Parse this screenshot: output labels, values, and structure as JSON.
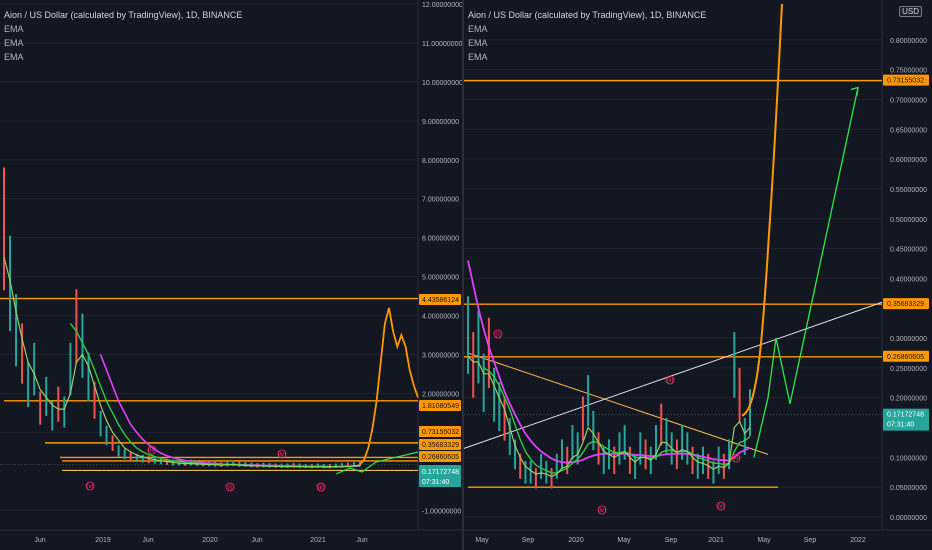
{
  "colors": {
    "background": "#131722",
    "orange": "#ff9800",
    "magenta": "#e040fb",
    "green_ema": "#4caf50",
    "bright_green": "#2ee84b",
    "white_line": "#e0e3eb",
    "price_tag": "#26a69a",
    "up_candle": "#26a69a",
    "down_candle": "#ef5350",
    "note_red": "#ff2e63"
  },
  "left_pane": {
    "legend": {
      "title": "Aion / US Dollar (calculated by TradingView), 1D, BINANCE",
      "indicators": [
        "EMA",
        "EMA",
        "EMA"
      ]
    },
    "price_tag": {
      "value": "0.17172748",
      "countdown": "07:31:40"
    },
    "level_tags": [
      "4.43586124",
      "1.81080549",
      "0.73155032",
      "0.35683329",
      "0.26860605"
    ],
    "notes": [
      "(iii)",
      "(iv)",
      "(v)",
      "(i)",
      "(ii)"
    ]
  },
  "right_pane": {
    "legend": {
      "title": "Aion / US Dollar (calculated by TradingView), 1D, BINANCE",
      "indicators": [
        "EMA",
        "EMA",
        "EMA"
      ]
    },
    "currency_badge": "USD",
    "price_tag": {
      "value": "0.17172748",
      "countdown": "07:31:40"
    },
    "level_tags": [
      "0.73155032",
      "0.35683329",
      "0.26860605"
    ],
    "notes": [
      "(i)",
      "(ii)",
      "(iv)",
      "(v)",
      "(iii)"
    ]
  },
  "chart_data": [
    {
      "type": "line",
      "title": "Aion / US Dollar (calculated by TradingView), 1D, BINANCE",
      "scale": "linear",
      "ylim": [
        -1.3,
        12.0
      ],
      "y_ticks": [
        "12.00000000",
        "11.00000000",
        "10.00000000",
        "9.00000000",
        "8.00000000",
        "7.00000000",
        "6.00000000",
        "5.00000000",
        "4.00000000",
        "3.00000000",
        "2.00000000",
        "1.00000000",
        "-1.00000000"
      ],
      "y_tick_values": [
        12,
        11,
        10,
        9,
        8,
        7,
        6,
        5,
        4,
        3,
        2,
        1,
        -1
      ],
      "x_ticks": [
        "Jun",
        "2019",
        "Jun",
        "2020",
        "Jun",
        "2021",
        "Jun"
      ],
      "horizontal_levels": [
        4.43586124,
        1.81080549,
        0.73155032,
        0.35683329,
        0.26860605
      ],
      "last_price": 0.17172748,
      "series": [
        {
          "role": "price",
          "values": [
            6.2,
            4.8,
            3.6,
            3.0,
            2.2,
            2.6,
            1.6,
            1.9,
            1.4,
            1.7,
            1.5,
            2.6,
            3.7,
            3.2,
            2.4,
            1.8,
            1.2,
            0.9,
            0.7,
            0.5,
            0.42,
            0.35,
            0.32,
            0.3,
            0.28,
            0.26,
            0.24,
            0.22,
            0.2,
            0.2,
            0.19,
            0.2,
            0.18,
            0.17,
            0.17,
            0.16,
            0.15,
            0.17,
            0.18,
            0.16,
            0.15,
            0.14,
            0.13,
            0.14,
            0.13,
            0.12,
            0.12,
            0.12,
            0.13,
            0.12,
            0.11,
            0.11,
            0.12,
            0.11,
            0.11,
            0.12,
            0.13,
            0.14,
            0.15,
            0.17
          ]
        },
        {
          "role": "ema_fast",
          "values": [
            5.5,
            4.9,
            4.1,
            3.4,
            2.8,
            2.5,
            2.1,
            1.9,
            1.7,
            1.6,
            1.6,
            2.0,
            2.8,
            3.0,
            2.7,
            2.2,
            1.7,
            1.3,
            1.0,
            0.8,
            0.6,
            0.5,
            0.42,
            0.37,
            0.33,
            0.3,
            0.27,
            0.25,
            0.23,
            0.21,
            0.2,
            0.2,
            0.19,
            0.18,
            0.17,
            0.17,
            0.16,
            0.17,
            0.17,
            0.16,
            0.15,
            0.14,
            0.14,
            0.14,
            0.13,
            0.13,
            0.12,
            0.12,
            0.12,
            0.12,
            0.12,
            0.11,
            0.12,
            0.11,
            0.11,
            0.12,
            0.12,
            0.13,
            0.14,
            0.16
          ]
        },
        {
          "role": "ema_mid",
          "values": [
            null,
            null,
            null,
            null,
            null,
            null,
            null,
            null,
            null,
            null,
            null,
            3.8,
            3.6,
            3.3,
            3.0,
            2.6,
            2.2,
            1.8,
            1.5,
            1.2,
            0.95,
            0.75,
            0.6,
            0.5,
            0.43,
            0.38,
            0.33,
            0.3,
            0.27,
            0.25,
            0.23,
            0.22,
            0.21,
            0.2,
            0.19,
            0.18,
            0.18,
            0.17,
            0.17,
            0.17,
            0.16,
            0.15,
            0.15,
            0.14,
            0.14,
            0.14,
            0.13,
            0.13,
            0.13,
            0.12,
            0.12,
            0.12,
            0.12,
            0.12,
            0.12,
            0.12,
            0.12,
            0.13,
            0.14,
            0.15
          ]
        },
        {
          "role": "ema_slow",
          "values": [
            null,
            null,
            null,
            null,
            null,
            null,
            null,
            null,
            null,
            null,
            null,
            null,
            null,
            null,
            null,
            null,
            3.0,
            2.6,
            2.2,
            1.8,
            1.5,
            1.2,
            1.0,
            0.82,
            0.68,
            0.56,
            0.47,
            0.4,
            0.35,
            0.31,
            0.28,
            0.26,
            0.24,
            0.22,
            0.21,
            0.2,
            0.19,
            0.18,
            0.18,
            0.17,
            0.17,
            0.16,
            0.16,
            0.15,
            0.15,
            0.15,
            0.14,
            0.14,
            0.14,
            0.13,
            0.13,
            0.13,
            0.13,
            0.13,
            0.12,
            0.12,
            0.12,
            0.13,
            0.13,
            0.14
          ]
        },
        {
          "role": "projection",
          "values": [
            0.17,
            0.3,
            0.6,
            1.1,
            1.8,
            2.8,
            3.8,
            4.2,
            3.6,
            3.2,
            3.5,
            3.2,
            2.6,
            2.2,
            1.9
          ]
        }
      ]
    },
    {
      "type": "line",
      "title": "Aion / US Dollar (calculated by TradingView), 1D, BINANCE",
      "scale": "linear",
      "ylim": [
        -0.005,
        0.86
      ],
      "y_ticks": [
        "0.80000000",
        "0.75000000",
        "0.70000000",
        "0.65000000",
        "0.60000000",
        "0.55000000",
        "0.50000000",
        "0.45000000",
        "0.40000000",
        "0.30000000",
        "0.25000000",
        "0.20000000",
        "0.10000000",
        "0.05000000",
        "0.00000000"
      ],
      "y_tick_values": [
        0.8,
        0.75,
        0.7,
        0.65,
        0.6,
        0.55,
        0.5,
        0.45,
        0.4,
        0.3,
        0.25,
        0.2,
        0.1,
        0.05,
        0.0
      ],
      "x_ticks": [
        "May",
        "Sep",
        "2020",
        "May",
        "Sep",
        "2021",
        "May",
        "Sep",
        "2022"
      ],
      "horizontal_levels": [
        0.73155032,
        0.35683329,
        0.26860605,
        0.05
      ],
      "last_price": 0.17172748,
      "series": [
        {
          "role": "price",
          "values": [
            0.3,
            0.25,
            0.28,
            0.22,
            0.27,
            0.2,
            0.18,
            0.16,
            0.13,
            0.1,
            0.08,
            0.07,
            0.07,
            0.06,
            0.08,
            0.07,
            0.06,
            0.08,
            0.1,
            0.09,
            0.12,
            0.11,
            0.16,
            0.19,
            0.14,
            0.11,
            0.09,
            0.1,
            0.09,
            0.11,
            0.12,
            0.09,
            0.08,
            0.11,
            0.1,
            0.09,
            0.12,
            0.15,
            0.13,
            0.11,
            0.1,
            0.12,
            0.11,
            0.09,
            0.08,
            0.09,
            0.08,
            0.07,
            0.09,
            0.08,
            0.1,
            0.25,
            0.2,
            0.13,
            0.17
          ]
        },
        {
          "role": "ema_fast",
          "values": [
            0.27,
            0.26,
            0.26,
            0.24,
            0.24,
            0.22,
            0.2,
            0.18,
            0.15,
            0.12,
            0.1,
            0.085,
            0.078,
            0.072,
            0.074,
            0.072,
            0.068,
            0.072,
            0.082,
            0.085,
            0.1,
            0.105,
            0.125,
            0.15,
            0.14,
            0.125,
            0.11,
            0.105,
            0.1,
            0.105,
            0.11,
            0.1,
            0.092,
            0.1,
            0.1,
            0.095,
            0.105,
            0.125,
            0.125,
            0.115,
            0.108,
            0.113,
            0.11,
            0.1,
            0.092,
            0.09,
            0.086,
            0.08,
            0.085,
            0.083,
            0.09,
            0.15,
            0.16,
            0.14,
            0.15
          ]
        },
        {
          "role": "ema_mid",
          "values": [
            null,
            null,
            null,
            0.25,
            0.245,
            0.235,
            0.22,
            0.2,
            0.18,
            0.155,
            0.13,
            0.11,
            0.097,
            0.087,
            0.082,
            0.078,
            0.074,
            0.074,
            0.078,
            0.082,
            0.09,
            0.097,
            0.108,
            0.122,
            0.127,
            0.124,
            0.118,
            0.113,
            0.108,
            0.108,
            0.109,
            0.106,
            0.1,
            0.1,
            0.1,
            0.098,
            0.1,
            0.108,
            0.112,
            0.112,
            0.109,
            0.11,
            0.11,
            0.106,
            0.1,
            0.097,
            0.094,
            0.09,
            0.09,
            0.088,
            0.09,
            0.11,
            0.125,
            0.128,
            0.135
          ]
        },
        {
          "role": "ema_slow",
          "values": [
            0.43,
            0.39,
            0.35,
            0.315,
            0.285,
            0.26,
            0.235,
            0.21,
            0.19,
            0.172,
            0.155,
            0.14,
            0.128,
            0.118,
            0.11,
            0.104,
            0.098,
            0.094,
            0.092,
            0.091,
            0.092,
            0.093,
            0.096,
            0.1,
            0.103,
            0.105,
            0.106,
            0.106,
            0.106,
            0.106,
            0.106,
            0.105,
            0.104,
            0.104,
            0.103,
            0.102,
            0.102,
            0.104,
            0.105,
            0.106,
            0.106,
            0.106,
            0.106,
            0.105,
            0.103,
            0.101,
            0.099,
            0.097,
            0.096,
            0.095,
            0.095,
            0.1,
            0.108,
            0.112,
            0.116
          ]
        },
        {
          "role": "projection_orange",
          "values": [
            0.17,
            0.3,
            0.5,
            0.7,
            0.86
          ]
        },
        {
          "role": "projection_green",
          "values": [
            0.1,
            0.2,
            0.3,
            0.19,
            0.72
          ]
        }
      ]
    }
  ]
}
